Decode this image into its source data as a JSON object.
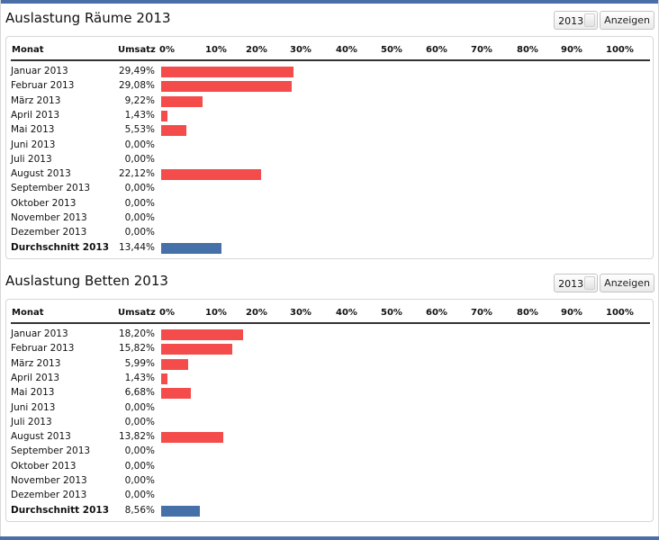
{
  "button_label": "Anzeigen",
  "colors": {
    "bar": "#f44b4b",
    "average_bar": "#4570a8",
    "accent": "#4a6fa8"
  },
  "sections": [
    {
      "title": "Auslastung Räume 2013",
      "year": "2013",
      "header": {
        "month": "Monat",
        "value": "Umsatz",
        "ticks": [
          "0%",
          "10%",
          "20%",
          "30%",
          "40%",
          "50%",
          "60%",
          "70%",
          "80%",
          "90%",
          "100%"
        ]
      },
      "rows": [
        {
          "month": "Januar 2013",
          "value_label": "29,49%",
          "value": 29.49
        },
        {
          "month": "Februar 2013",
          "value_label": "29,08%",
          "value": 29.08
        },
        {
          "month": "März 2013",
          "value_label": "9,22%",
          "value": 9.22
        },
        {
          "month": "April 2013",
          "value_label": "1,43%",
          "value": 1.43
        },
        {
          "month": "Mai 2013",
          "value_label": "5,53%",
          "value": 5.53
        },
        {
          "month": "Juni 2013",
          "value_label": "0,00%",
          "value": 0
        },
        {
          "month": "Juli 2013",
          "value_label": "0,00%",
          "value": 0
        },
        {
          "month": "August 2013",
          "value_label": "22,12%",
          "value": 22.12
        },
        {
          "month": "September 2013",
          "value_label": "0,00%",
          "value": 0
        },
        {
          "month": "Oktober 2013",
          "value_label": "0,00%",
          "value": 0
        },
        {
          "month": "November 2013",
          "value_label": "0,00%",
          "value": 0
        },
        {
          "month": "Dezember 2013",
          "value_label": "0,00%",
          "value": 0
        }
      ],
      "average": {
        "month": "Durchschnitt 2013",
        "value_label": "13,44%",
        "value": 13.44
      }
    },
    {
      "title": "Auslastung Betten 2013",
      "year": "2013",
      "header": {
        "month": "Monat",
        "value": "Umsatz",
        "ticks": [
          "0%",
          "10%",
          "20%",
          "30%",
          "40%",
          "50%",
          "60%",
          "70%",
          "80%",
          "90%",
          "100%"
        ]
      },
      "rows": [
        {
          "month": "Januar 2013",
          "value_label": "18,20%",
          "value": 18.2
        },
        {
          "month": "Februar 2013",
          "value_label": "15,82%",
          "value": 15.82
        },
        {
          "month": "März 2013",
          "value_label": "5,99%",
          "value": 5.99
        },
        {
          "month": "April 2013",
          "value_label": "1,43%",
          "value": 1.43
        },
        {
          "month": "Mai 2013",
          "value_label": "6,68%",
          "value": 6.68
        },
        {
          "month": "Juni 2013",
          "value_label": "0,00%",
          "value": 0
        },
        {
          "month": "Juli 2013",
          "value_label": "0,00%",
          "value": 0
        },
        {
          "month": "August 2013",
          "value_label": "13,82%",
          "value": 13.82
        },
        {
          "month": "September 2013",
          "value_label": "0,00%",
          "value": 0
        },
        {
          "month": "Oktober 2013",
          "value_label": "0,00%",
          "value": 0
        },
        {
          "month": "November 2013",
          "value_label": "0,00%",
          "value": 0
        },
        {
          "month": "Dezember 2013",
          "value_label": "0,00%",
          "value": 0
        }
      ],
      "average": {
        "month": "Durchschnitt 2013",
        "value_label": "8,56%",
        "value": 8.56
      }
    }
  ]
}
